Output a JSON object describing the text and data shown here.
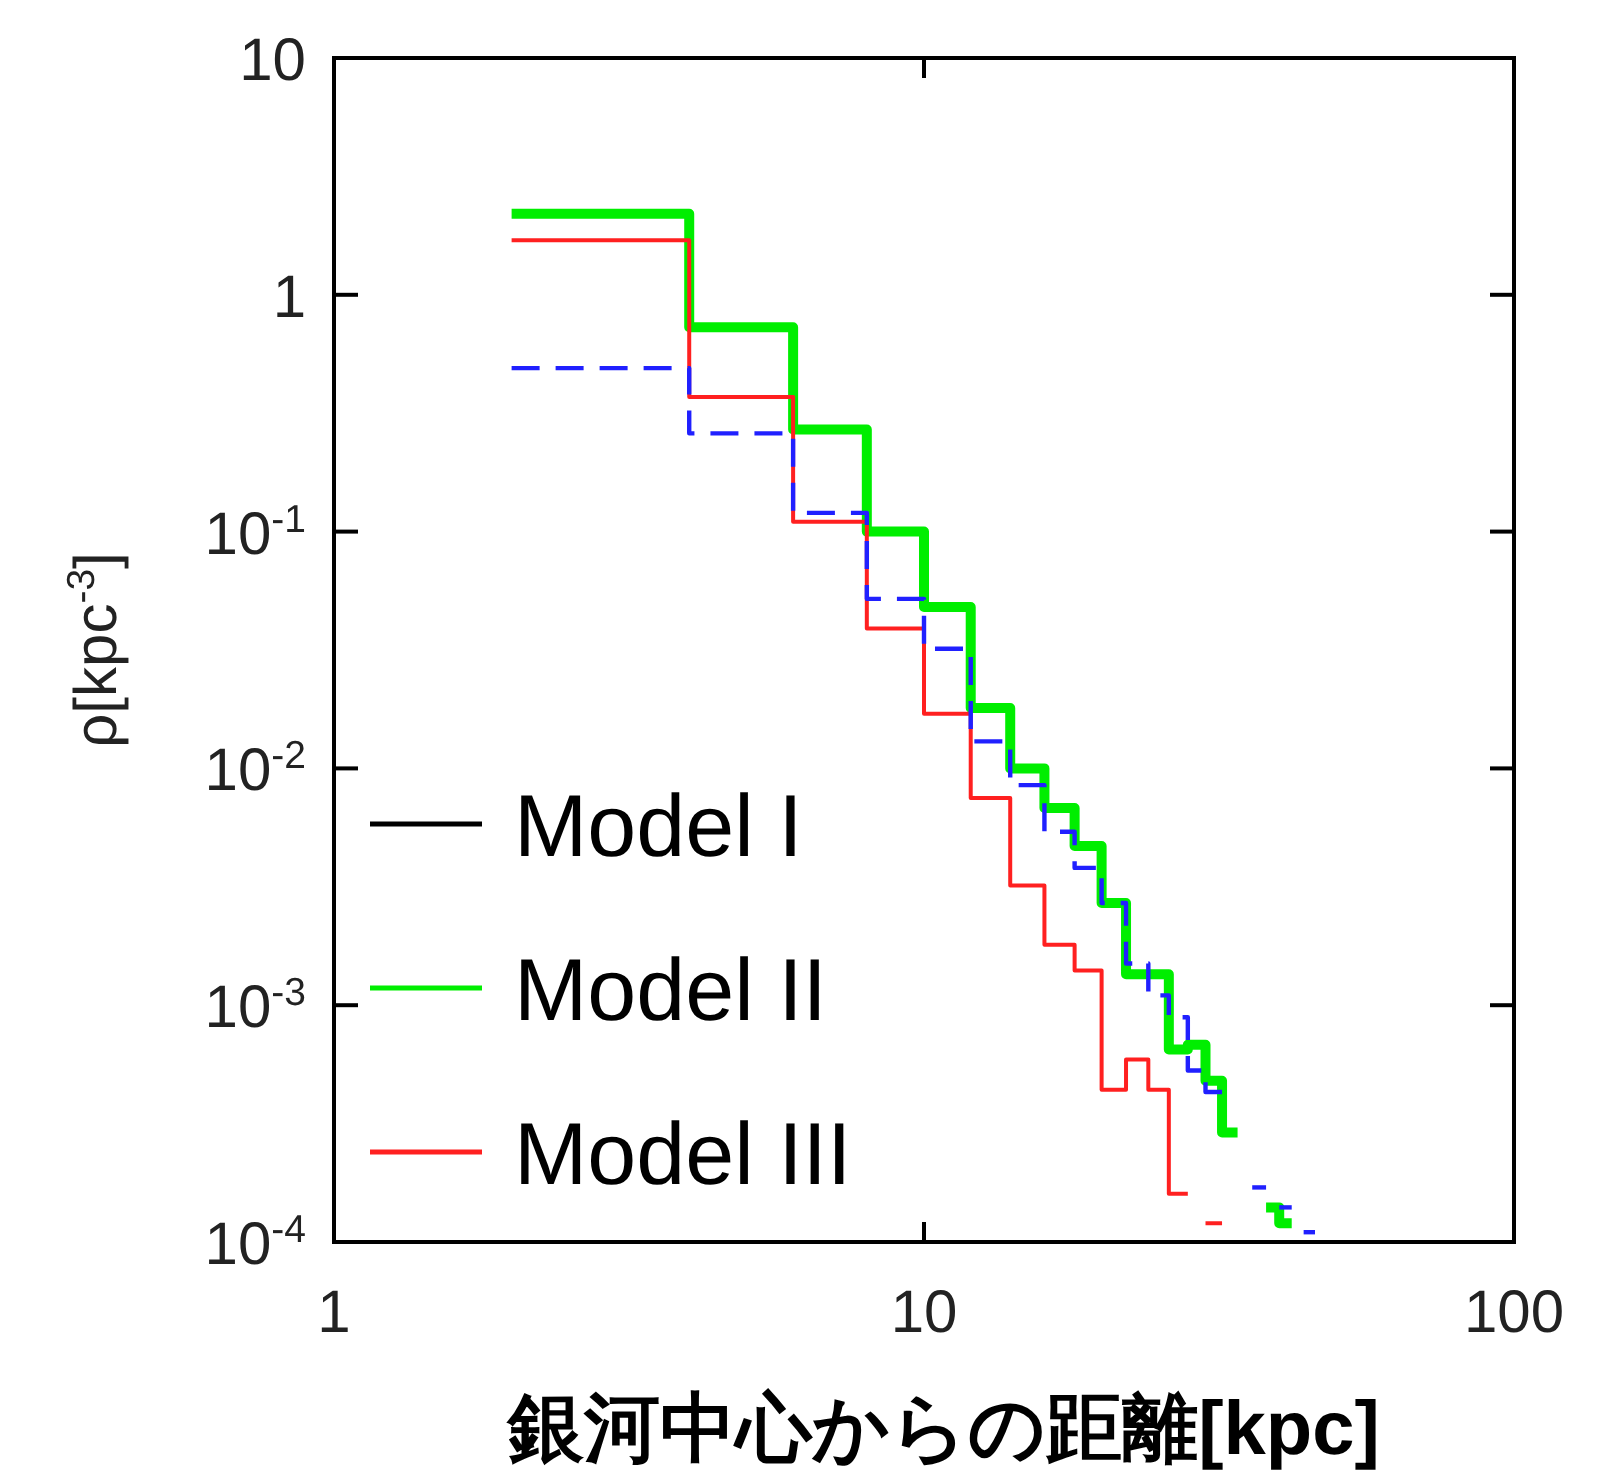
{
  "chart_data": {
    "type": "step",
    "xlabel": "銀河中心からの距離[kpc]",
    "ylabel": "ρ[kpc$^{-3}$]",
    "log": "xy",
    "xlim": [
      1,
      100
    ],
    "xticks": [
      1,
      10,
      100
    ],
    "ylim": [
      0.0001,
      10
    ],
    "yticks": [
      10,
      1,
      {
        "value": 0.1,
        "label": "10$^{-1}$"
      },
      {
        "value": 0.01,
        "label": "10$^{-2}$"
      },
      {
        "value": 0.001,
        "label": "10$^{-3}$"
      },
      {
        "value": 0.0001,
        "label": "10$^{-4}$"
      }
    ],
    "grid": false,
    "legend": "bottom left",
    "series": [
      {
        "name": "Model I",
        "color": "#000000",
        "line_style": "solid"
      },
      {
        "name": "Model II",
        "color": "#00ee00",
        "line_style": "solid",
        "x": [
          2,
          4,
          6,
          8,
          10,
          12,
          14,
          16,
          18,
          20,
          22,
          24,
          26,
          28,
          30,
          32,
          34
        ],
        "values": [
          2.2,
          0.73,
          0.27,
          0.1,
          0.048,
          0.018,
          0.01,
          0.0068,
          0.0047,
          0.0027,
          0.00135,
          0.00135,
          0.00065,
          0.00068,
          0.00048,
          0.00029,
          0.00029
        ]
      },
      {
        "color": "#00ee00",
        "line_style": "solid",
        "x": [
          38,
          40,
          42
        ],
        "values": [
          0.00014,
          0.00012,
          0.00012
        ]
      },
      {
        "name": "Model III",
        "color": "#ff2020",
        "line_style": "solid",
        "x": [
          2,
          4,
          6,
          8,
          10,
          12,
          14,
          16,
          18,
          20,
          22,
          24,
          26,
          28
        ],
        "values": [
          1.7,
          0.37,
          0.11,
          0.039,
          0.017,
          0.0075,
          0.0032,
          0.0018,
          0.0014,
          0.00044,
          0.00059,
          0.00044,
          0.00016,
          0.00016
        ]
      },
      {
        "color": "#ff2020",
        "line_style": "solid",
        "x": [
          30,
          32
        ],
        "values": [
          0.00012,
          0.00012
        ]
      },
      {
        "color": "#2020ff",
        "line_style": "dashed",
        "x": [
          2,
          4,
          6,
          8,
          10,
          12,
          14,
          16,
          18,
          20,
          22,
          24,
          26,
          28,
          30,
          32
        ],
        "values": [
          0.49,
          0.26,
          0.12,
          0.052,
          0.032,
          0.013,
          0.0085,
          0.0054,
          0.0038,
          0.0027,
          0.0015,
          0.0011,
          0.00089,
          0.00053,
          0.00043,
          0.00043
        ]
      },
      {
        "color": "#2020ff",
        "line_style": "dashed",
        "x": [
          36,
          38
        ],
        "values": [
          0.00017,
          0.00017
        ]
      },
      {
        "color": "#2020ff",
        "line_style": "dashed",
        "x": [
          40,
          42
        ],
        "values": [
          0.00014,
          0.00014
        ]
      },
      {
        "color": "#2020ff",
        "line_style": "dashed",
        "x": [
          44,
          46
        ],
        "values": [
          0.00011,
          0.00011
        ]
      }
    ]
  }
}
